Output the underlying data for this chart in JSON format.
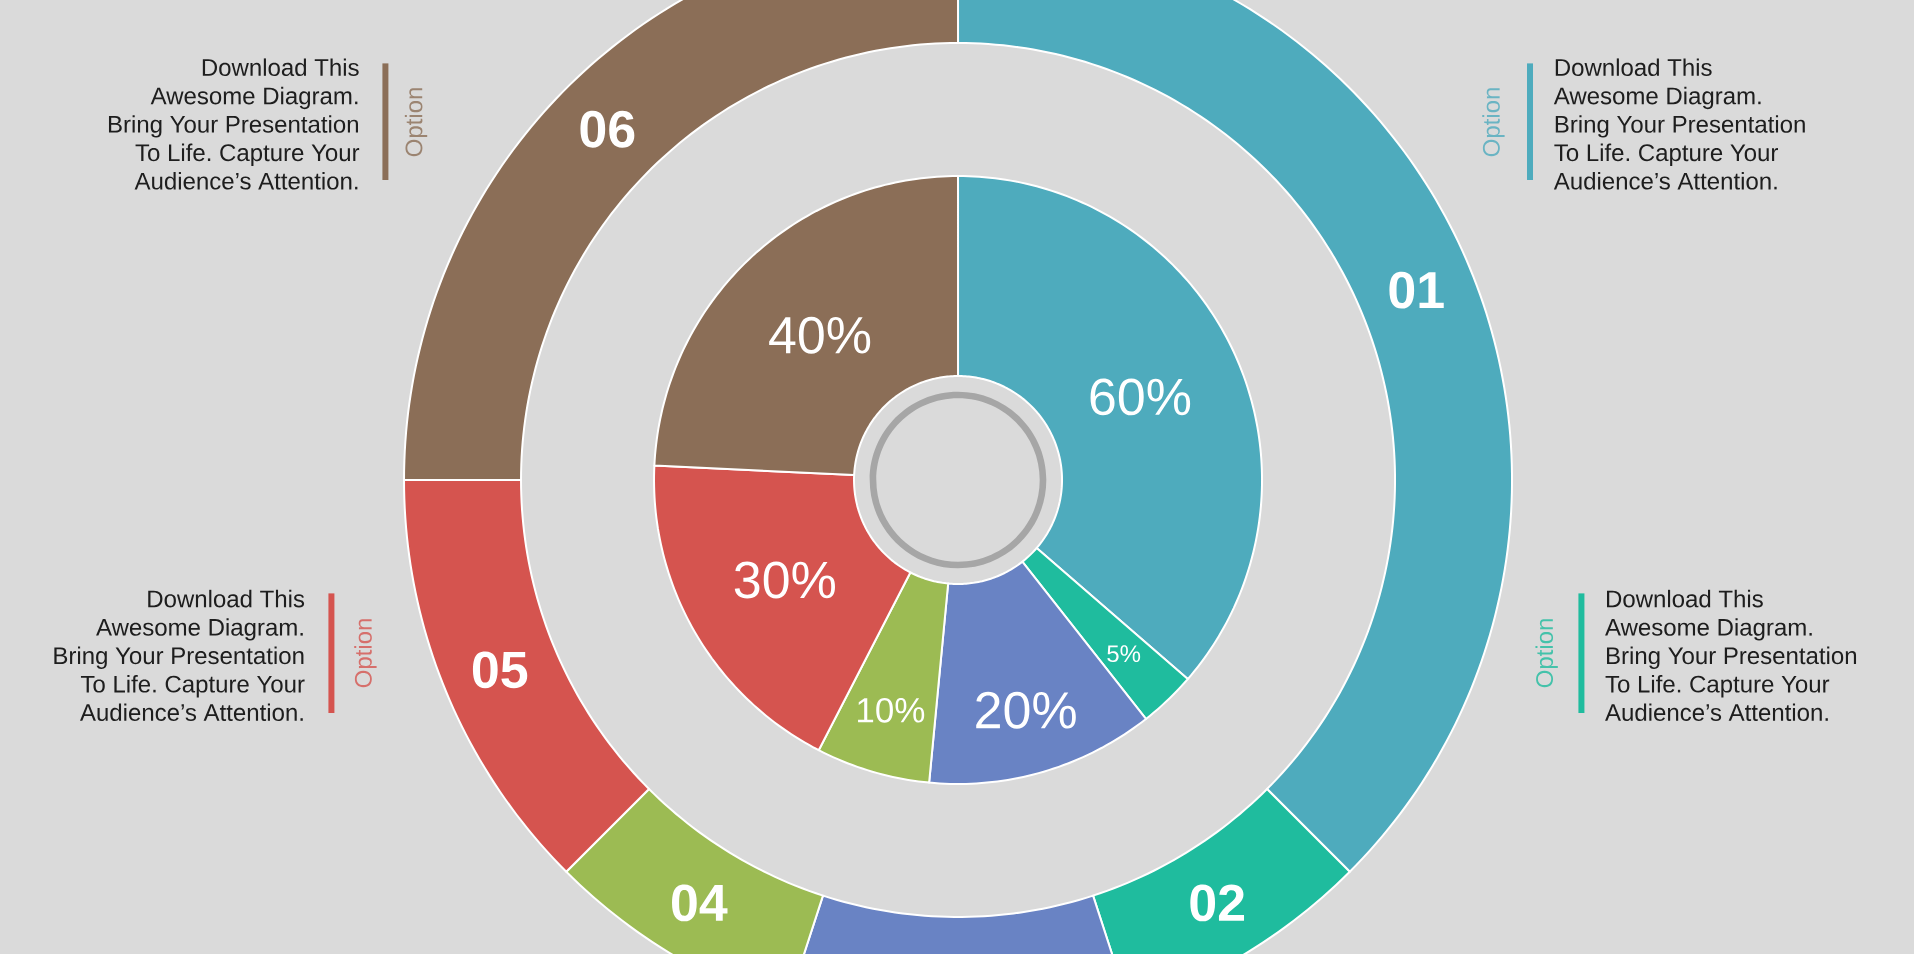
{
  "chart_data": [
    {
      "type": "donut",
      "categories": [
        "01",
        "02",
        null,
        "04",
        "05",
        "06"
      ],
      "values": [
        37.5,
        7.5,
        10,
        7.5,
        12.5,
        25
      ],
      "colors": [
        "#4eabbd",
        "#1fbc9e",
        "#6983c4",
        "#9cbb53",
        "#d5544f",
        "#8b6e57"
      ],
      "annotations": [
        "Download This Awesome Diagram. Bring Your Presentation To Life. Capture Your Audience’s Attention.",
        "Option",
        "Option",
        "Download This Awesome Diagram. Bring Your Presentation To Life. Capture Your Audience’s Attention.",
        "Download This Awesome Diagram. Bring Your Presentation To Life. Capture Your Audience’s Attention.",
        "Option",
        "Option",
        "Download This Awesome Diagram. Bring Your Presentation To Life. Capture Your Audience’s Attention."
      ]
    },
    {
      "type": "donut",
      "categories": [
        null,
        null,
        null,
        null,
        null,
        null
      ],
      "values": [
        60,
        5,
        20,
        10,
        30,
        40
      ],
      "colors": [
        "#4eabbd",
        "#1fbc9e",
        "#6983c4",
        "#9cbb53",
        "#d5544f",
        "#8b6e57"
      ],
      "value_labels": [
        "60%",
        "5%",
        "20%",
        "10%",
        "30%",
        "40%"
      ]
    }
  ]
}
